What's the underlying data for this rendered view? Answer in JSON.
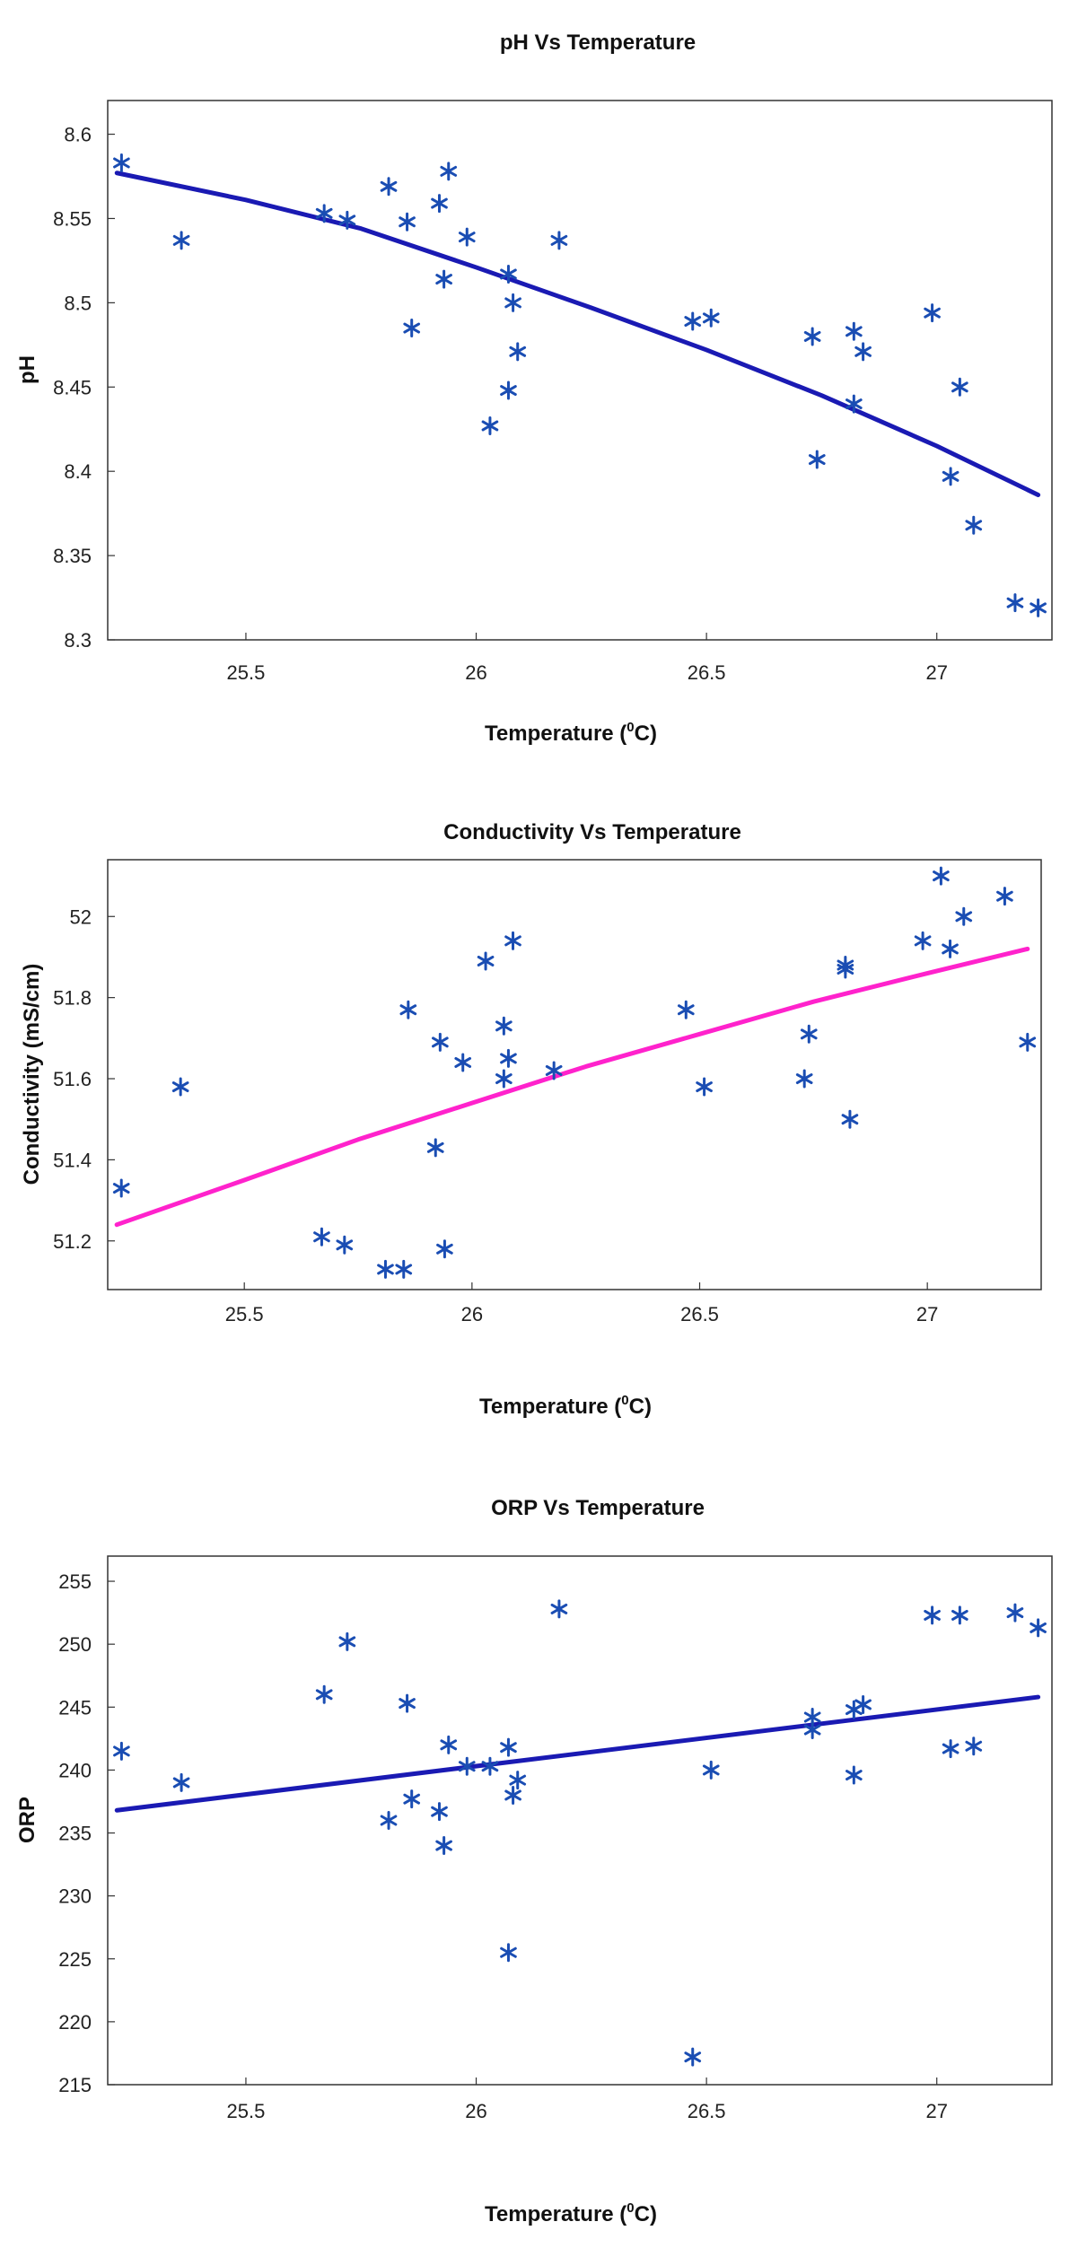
{
  "chart_data": [
    {
      "type": "scatter",
      "title": "pH Vs Temperature",
      "xlabel": "Temperature (",
      "xlabel_sup": "0",
      "xlabel_tail": "C)",
      "ylabel": "pH",
      "xlim": [
        25.2,
        27.25
      ],
      "ylim": [
        8.3,
        8.62
      ],
      "x_ticks": [
        25.5,
        26,
        26.5,
        27
      ],
      "x_tick_labels": [
        "25.5",
        "26",
        "26.5",
        "27"
      ],
      "y_ticks": [
        8.3,
        8.35,
        8.4,
        8.45,
        8.5,
        8.55,
        8.6
      ],
      "y_tick_labels": [
        "8.3",
        "8.35",
        "8.4",
        "8.45",
        "8.5",
        "8.55",
        "8.6"
      ],
      "grid": false,
      "marker_color": "#1a4db3",
      "points": [
        [
          25.23,
          8.583
        ],
        [
          25.36,
          8.537
        ],
        [
          25.67,
          8.553
        ],
        [
          25.72,
          8.549
        ],
        [
          25.81,
          8.569
        ],
        [
          25.85,
          8.548
        ],
        [
          25.86,
          8.485
        ],
        [
          25.92,
          8.559
        ],
        [
          25.93,
          8.514
        ],
        [
          25.94,
          8.578
        ],
        [
          25.98,
          8.539
        ],
        [
          26.03,
          8.427
        ],
        [
          26.07,
          8.517
        ],
        [
          26.07,
          8.448
        ],
        [
          26.08,
          8.5
        ],
        [
          26.09,
          8.471
        ],
        [
          26.18,
          8.537
        ],
        [
          26.47,
          8.489
        ],
        [
          26.51,
          8.491
        ],
        [
          26.73,
          8.48
        ],
        [
          26.74,
          8.407
        ],
        [
          26.82,
          8.483
        ],
        [
          26.82,
          8.44
        ],
        [
          26.84,
          8.471
        ],
        [
          26.99,
          8.494
        ],
        [
          27.03,
          8.397
        ],
        [
          27.05,
          8.45
        ],
        [
          27.08,
          8.368
        ],
        [
          27.17,
          8.322
        ],
        [
          27.22,
          8.319
        ]
      ],
      "fit": {
        "color": "#1a1ab3",
        "x": [
          25.22,
          25.5,
          25.75,
          26.0,
          26.25,
          26.5,
          26.75,
          27.0,
          27.22
        ],
        "y": [
          8.577,
          8.561,
          8.544,
          8.521,
          8.497,
          8.472,
          8.445,
          8.415,
          8.386
        ]
      }
    },
    {
      "type": "scatter",
      "title": "Conductivity Vs Temperature",
      "xlabel": "Temperature (",
      "xlabel_sup": "0",
      "xlabel_tail": "C)",
      "ylabel": "Conductivity (mS/cm)",
      "xlim": [
        25.2,
        27.25
      ],
      "ylim": [
        51.08,
        52.14
      ],
      "x_ticks": [
        25.5,
        26,
        26.5,
        27
      ],
      "x_tick_labels": [
        "25.5",
        "26",
        "26.5",
        "27"
      ],
      "y_ticks": [
        51.2,
        51.4,
        51.6,
        51.8,
        52
      ],
      "y_tick_labels": [
        "51.2",
        "51.4",
        "51.6",
        "51.8",
        "52"
      ],
      "grid": false,
      "marker_color": "#1a4db3",
      "points": [
        [
          25.23,
          51.33
        ],
        [
          25.36,
          51.58
        ],
        [
          25.67,
          51.21
        ],
        [
          25.72,
          51.19
        ],
        [
          25.81,
          51.13
        ],
        [
          25.85,
          51.13
        ],
        [
          25.86,
          51.77
        ],
        [
          25.92,
          51.43
        ],
        [
          25.93,
          51.69
        ],
        [
          25.94,
          51.18
        ],
        [
          25.98,
          51.64
        ],
        [
          26.03,
          51.89
        ],
        [
          26.07,
          51.6
        ],
        [
          26.07,
          51.73
        ],
        [
          26.08,
          51.65
        ],
        [
          26.09,
          51.94
        ],
        [
          26.18,
          51.62
        ],
        [
          26.47,
          51.77
        ],
        [
          26.51,
          51.58
        ],
        [
          26.73,
          51.6
        ],
        [
          26.74,
          51.71
        ],
        [
          26.82,
          51.88
        ],
        [
          26.82,
          51.87
        ],
        [
          26.83,
          51.5
        ],
        [
          26.99,
          51.94
        ],
        [
          27.03,
          52.1
        ],
        [
          27.05,
          51.92
        ],
        [
          27.08,
          52.0
        ],
        [
          27.17,
          52.05
        ],
        [
          27.22,
          51.69
        ]
      ],
      "fit": {
        "color": "#ff22cc",
        "x": [
          25.22,
          25.5,
          25.75,
          26.0,
          26.25,
          26.5,
          26.75,
          27.0,
          27.22
        ],
        "y": [
          51.24,
          51.35,
          51.45,
          51.54,
          51.63,
          51.71,
          51.79,
          51.86,
          51.92
        ]
      }
    },
    {
      "type": "scatter",
      "title": "ORP Vs Temperature",
      "xlabel": "Temperature (",
      "xlabel_sup": "0",
      "xlabel_tail": "C)",
      "ylabel": "ORP",
      "xlim": [
        25.2,
        27.25
      ],
      "ylim": [
        215,
        257
      ],
      "x_ticks": [
        25.5,
        26,
        26.5,
        27
      ],
      "x_tick_labels": [
        "25.5",
        "26",
        "26.5",
        "27"
      ],
      "y_ticks": [
        215,
        220,
        225,
        230,
        235,
        240,
        245,
        250,
        255
      ],
      "y_tick_labels": [
        "215",
        "220",
        "225",
        "230",
        "235",
        "240",
        "245",
        "250",
        "255"
      ],
      "grid": false,
      "marker_color": "#1a4db3",
      "points": [
        [
          25.23,
          241.5
        ],
        [
          25.36,
          239.0
        ],
        [
          25.67,
          246.0
        ],
        [
          25.72,
          250.2
        ],
        [
          25.81,
          236.0
        ],
        [
          25.85,
          245.3
        ],
        [
          25.86,
          237.7
        ],
        [
          25.92,
          236.7
        ],
        [
          25.93,
          234.0
        ],
        [
          25.94,
          242.0
        ],
        [
          25.98,
          240.3
        ],
        [
          26.03,
          240.3
        ],
        [
          26.07,
          225.5
        ],
        [
          26.07,
          241.8
        ],
        [
          26.08,
          238.0
        ],
        [
          26.09,
          239.2
        ],
        [
          26.18,
          252.8
        ],
        [
          26.47,
          217.2
        ],
        [
          26.51,
          240.0
        ],
        [
          26.73,
          244.2
        ],
        [
          26.73,
          243.2
        ],
        [
          26.82,
          244.8
        ],
        [
          26.82,
          239.6
        ],
        [
          26.84,
          245.2
        ],
        [
          26.99,
          252.3
        ],
        [
          27.03,
          241.7
        ],
        [
          27.05,
          252.3
        ],
        [
          27.08,
          241.9
        ],
        [
          27.17,
          252.5
        ],
        [
          27.22,
          251.3
        ]
      ],
      "fit": {
        "color": "#1a1ab3",
        "x": [
          25.22,
          27.22
        ],
        "y": [
          236.8,
          245.8
        ]
      }
    }
  ]
}
